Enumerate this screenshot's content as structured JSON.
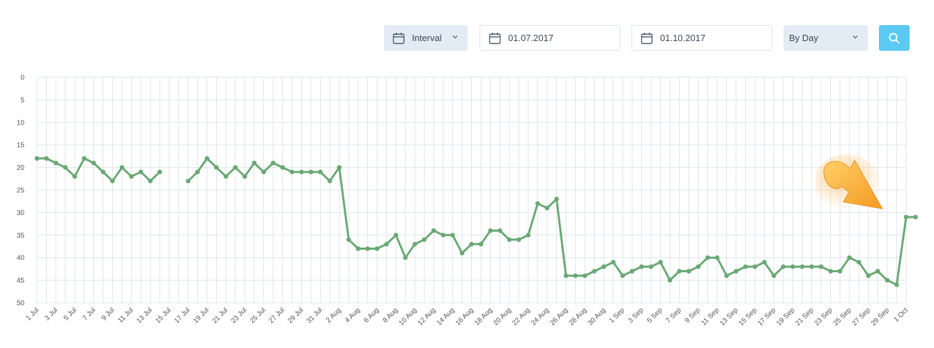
{
  "toolbar": {
    "interval_label": "Interval",
    "date_from": "01.07.2017",
    "date_to": "01.10.2017",
    "period_label": "By Day",
    "icons": {
      "calendar": "calendar-icon",
      "chevron": "chevron-down-icon",
      "search": "search-icon"
    }
  },
  "colors": {
    "line": "#6aa874",
    "grid": "#dfe4e8",
    "axis_text": "#555555",
    "search_button": "#5cc8f4",
    "control_bg": "#e3ebf4"
  },
  "chart_data": {
    "type": "line",
    "title": "",
    "xlabel": "",
    "ylabel": "",
    "y_reversed": true,
    "ylim": [
      0,
      50
    ],
    "yticks": [
      "0",
      "5",
      "10",
      "15",
      "20",
      "25",
      "30",
      "35",
      "40",
      "45",
      "50"
    ],
    "grid": true,
    "x_tick_labels": [
      "1 Jul",
      "3 Jul",
      "5 Jul",
      "7 Jul",
      "9 Jul",
      "11 Jul",
      "13 Jul",
      "15 Jul",
      "17 Jul",
      "19 Jul",
      "21 Jul",
      "23 Jul",
      "25 Jul",
      "27 Jul",
      "29 Jul",
      "31 Jul",
      "2 Aug",
      "4 Aug",
      "6 Aug",
      "8 Aug",
      "10 Aug",
      "12 Aug",
      "14 Aug",
      "16 Aug",
      "18 Aug",
      "20 Aug",
      "22 Aug",
      "24 Aug",
      "26 Aug",
      "28 Aug",
      "30 Aug",
      "1 Sep",
      "3 Sep",
      "5 Sep",
      "7 Sep",
      "9 Sep",
      "11 Sep",
      "13 Sep",
      "15 Sep",
      "17 Sep",
      "19 Sep",
      "21 Sep",
      "23 Sep",
      "25 Sep",
      "27 Sep",
      "29 Sep",
      "1 Oct"
    ],
    "x_start": "2017-07-01",
    "x_end": "2017-10-01",
    "series": [
      {
        "values": [
          18,
          18,
          19,
          20,
          22,
          18,
          19,
          21,
          23,
          20,
          22,
          21,
          23,
          21,
          null,
          null,
          23,
          21,
          18,
          20,
          22,
          20,
          22,
          19,
          21,
          19,
          20,
          21,
          21,
          21,
          21,
          23,
          20,
          36,
          38,
          38,
          38,
          37,
          35,
          40,
          37,
          36,
          34,
          35,
          35,
          39,
          37,
          37,
          34,
          34,
          36,
          36,
          35,
          28,
          29,
          27,
          44,
          44,
          44,
          43,
          42,
          41,
          44,
          43,
          42,
          42,
          41,
          45,
          43,
          43,
          42,
          40,
          40,
          44,
          43,
          42,
          42,
          41,
          44,
          42,
          42,
          42,
          42,
          42,
          43,
          43,
          40,
          41,
          44,
          43,
          45,
          46,
          31,
          31
        ]
      }
    ]
  }
}
